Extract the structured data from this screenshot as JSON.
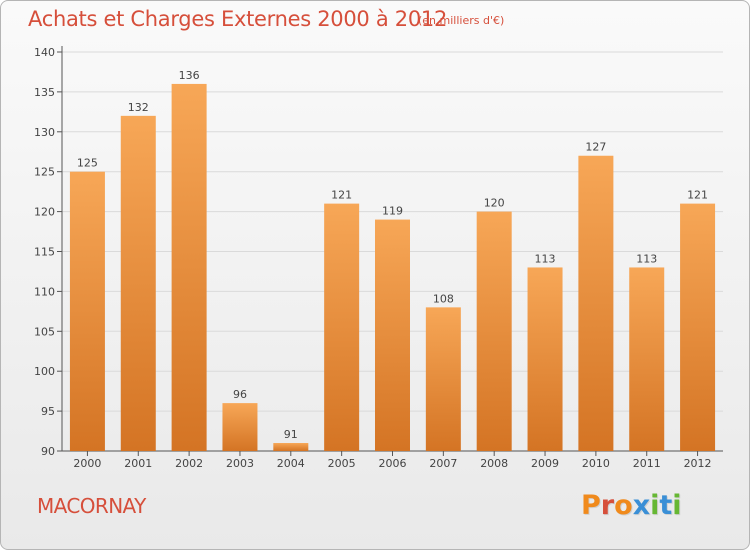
{
  "header": {
    "title": "Achats et Charges Externes 2000 à 2012",
    "subtitle": "(en milliers d'€)"
  },
  "footer": {
    "commune": "MACORNAY",
    "logo_text": "Proxiti"
  },
  "colors": {
    "title": "#d64f3b",
    "bar_top": "#f7a757",
    "bar_bottom": "#d47424",
    "logo": [
      "#f08a1c",
      "#d64f3b",
      "#f08a1c",
      "#3a8fd6",
      "#66b733",
      "#3a8fd6",
      "#66b733"
    ]
  },
  "chart_data": {
    "type": "bar",
    "title": "Achats et Charges Externes 2000 à 2012",
    "subtitle": "(en milliers d'€)",
    "xlabel": "",
    "ylabel": "",
    "categories": [
      "2000",
      "2001",
      "2002",
      "2003",
      "2004",
      "2005",
      "2006",
      "2007",
      "2008",
      "2009",
      "2010",
      "2011",
      "2012"
    ],
    "values": [
      125,
      132,
      136,
      96,
      91,
      121,
      119,
      108,
      120,
      113,
      127,
      113,
      121
    ],
    "ylim": [
      90,
      140
    ],
    "yticks": [
      90,
      95,
      100,
      105,
      110,
      115,
      120,
      125,
      130,
      135,
      140
    ],
    "grid": true,
    "legend": "none"
  }
}
